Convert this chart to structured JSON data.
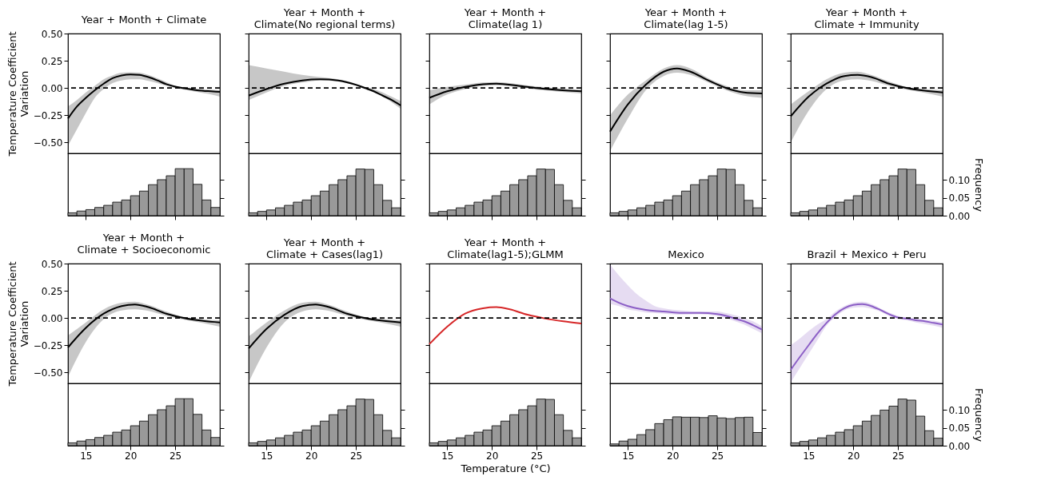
{
  "chart_data": [
    {
      "type": "line",
      "title": "Year + Month + Climate",
      "ylabel": "Temperature Coefficient\nVariation",
      "xlim": [
        13,
        30
      ],
      "ylim": [
        -0.6,
        0.5
      ],
      "yticks": [
        {
          "value": -0.5,
          "label": "−0.50"
        },
        {
          "value": -0.25,
          "label": "−0.25"
        },
        {
          "value": 0,
          "label": "0.00"
        },
        {
          "value": 0.25,
          "label": "0.25"
        },
        {
          "value": 0.5,
          "label": "0.50"
        }
      ],
      "tick_labels": "y",
      "series": [
        {
          "color": "#000000",
          "x": [
            13,
            14,
            15,
            16,
            17,
            18,
            19,
            20,
            21,
            22,
            23,
            24,
            25,
            26,
            27,
            28,
            29,
            30
          ],
          "values": [
            -0.28,
            -0.17,
            -0.09,
            -0.02,
            0.04,
            0.09,
            0.115,
            0.125,
            0.12,
            0.1,
            0.07,
            0.035,
            0.012,
            -0.003,
            -0.015,
            -0.025,
            -0.03,
            -0.035
          ],
          "lower": [
            -0.53,
            -0.38,
            -0.23,
            -0.09,
            -0.01,
            0.045,
            0.07,
            0.08,
            0.08,
            0.065,
            0.045,
            0.02,
            0,
            -0.015,
            -0.03,
            -0.045,
            -0.06,
            -0.08
          ],
          "upper": [
            -0.17,
            -0.11,
            -0.04,
            0.02,
            0.08,
            0.115,
            0.14,
            0.145,
            0.14,
            0.12,
            0.09,
            0.055,
            0.02,
            0.005,
            -0.005,
            -0.01,
            -0.015,
            -0.02
          ]
        }
      ],
      "ref_lines": [
        {
          "axis": "y",
          "value": 0,
          "color": "#000000",
          "line_style": "dashed"
        }
      ]
    },
    {
      "type": "histogram",
      "color": "#999999",
      "bins": [
        13,
        14,
        15,
        16,
        17,
        18,
        19,
        20,
        21,
        22,
        23,
        24,
        25,
        26,
        27,
        28,
        29,
        30
      ],
      "values": [
        0.008,
        0.013,
        0.017,
        0.023,
        0.029,
        0.038,
        0.044,
        0.056,
        0.069,
        0.087,
        0.101,
        0.112,
        0.132,
        0.132,
        0.088,
        0.044,
        0.023
      ],
      "xlim": [
        13,
        30
      ],
      "ylim": [
        0,
        0.175
      ],
      "xticks": [
        {
          "value": 15,
          "label": null
        },
        {
          "value": 20,
          "label": null
        },
        {
          "value": 25,
          "label": null
        }
      ],
      "yticks": [
        {
          "value": 0,
          "label": null
        },
        {
          "value": 0.05,
          "label": null
        },
        {
          "value": 0.1,
          "label": null
        }
      ],
      "tick_labels": false
    },
    {
      "type": "line",
      "title": "Year + Month +\nClimate(No regional terms)",
      "xlim": [
        13,
        30
      ],
      "ylim": [
        -0.6,
        0.5
      ],
      "yticks": [
        {
          "value": -0.5,
          "label": null
        },
        {
          "value": -0.25,
          "label": null
        },
        {
          "value": 0,
          "label": null
        },
        {
          "value": 0.25,
          "label": null
        },
        {
          "value": 0.5,
          "label": null
        }
      ],
      "tick_labels": false,
      "series": [
        {
          "color": "#000000",
          "x": [
            13,
            15,
            17,
            19,
            21,
            23,
            25,
            26,
            27,
            28,
            29,
            30
          ],
          "values": [
            -0.07,
            -0.01,
            0.04,
            0.07,
            0.08,
            0.07,
            0.03,
            0.0,
            -0.03,
            -0.07,
            -0.11,
            -0.16
          ],
          "lower": [
            -0.11,
            -0.04,
            0.02,
            0.05,
            0.07,
            0.06,
            0.02,
            -0.01,
            -0.04,
            -0.08,
            -0.13,
            -0.19
          ],
          "upper": [
            0.21,
            0.18,
            0.15,
            0.12,
            0.1,
            0.08,
            0.04,
            0.01,
            -0.01,
            -0.04,
            -0.08,
            -0.12
          ]
        }
      ],
      "ref_lines": [
        {
          "axis": "y",
          "value": 0,
          "color": "#000000",
          "line_style": "dashed"
        }
      ]
    },
    {
      "type": "histogram",
      "color": "#999999",
      "bins": [
        13,
        14,
        15,
        16,
        17,
        18,
        19,
        20,
        21,
        22,
        23,
        24,
        25,
        26,
        27,
        28,
        29,
        30
      ],
      "values": [
        0.008,
        0.012,
        0.016,
        0.022,
        0.029,
        0.038,
        0.044,
        0.056,
        0.069,
        0.087,
        0.101,
        0.112,
        0.131,
        0.13,
        0.087,
        0.043,
        0.022
      ],
      "xlim": [
        13,
        30
      ],
      "ylim": [
        0,
        0.175
      ],
      "xticks": [
        {
          "value": 15,
          "label": null
        },
        {
          "value": 20,
          "label": null
        },
        {
          "value": 25,
          "label": null
        }
      ],
      "yticks": [
        {
          "value": 0,
          "label": null
        },
        {
          "value": 0.05,
          "label": null
        },
        {
          "value": 0.1,
          "label": null
        }
      ],
      "tick_labels": false
    },
    {
      "type": "line",
      "title": "Year + Month +\nClimate(lag 1)",
      "xlim": [
        13,
        30
      ],
      "ylim": [
        -0.6,
        0.5
      ],
      "yticks": [
        {
          "value": -0.5,
          "label": null
        },
        {
          "value": -0.25,
          "label": null
        },
        {
          "value": 0,
          "label": null
        },
        {
          "value": 0.25,
          "label": null
        },
        {
          "value": 0.5,
          "label": null
        }
      ],
      "tick_labels": false,
      "series": [
        {
          "color": "#000000",
          "x": [
            13,
            15,
            17,
            19,
            20.5,
            23,
            25,
            27,
            30
          ],
          "values": [
            -0.09,
            -0.03,
            0.01,
            0.035,
            0.04,
            0.02,
            0.0,
            -0.015,
            -0.03
          ],
          "lower": [
            -0.15,
            -0.06,
            -0.01,
            0.02,
            0.025,
            0.005,
            -0.015,
            -0.03,
            -0.05
          ],
          "upper": [
            -0.02,
            0.01,
            0.03,
            0.05,
            0.055,
            0.035,
            0.015,
            0.0,
            -0.015
          ]
        }
      ],
      "ref_lines": [
        {
          "axis": "y",
          "value": 0,
          "color": "#000000",
          "line_style": "dashed"
        }
      ]
    },
    {
      "type": "histogram",
      "color": "#999999",
      "bins": [
        13,
        14,
        15,
        16,
        17,
        18,
        19,
        20,
        21,
        22,
        23,
        24,
        25,
        26,
        27,
        28,
        29,
        30
      ],
      "values": [
        0.008,
        0.012,
        0.016,
        0.022,
        0.029,
        0.038,
        0.044,
        0.056,
        0.069,
        0.087,
        0.101,
        0.112,
        0.131,
        0.13,
        0.087,
        0.043,
        0.022
      ],
      "xlim": [
        13,
        30
      ],
      "ylim": [
        0,
        0.175
      ],
      "xticks": [
        {
          "value": 15,
          "label": null
        },
        {
          "value": 20,
          "label": null
        },
        {
          "value": 25,
          "label": null
        }
      ],
      "yticks": [
        {
          "value": 0,
          "label": null
        },
        {
          "value": 0.05,
          "label": null
        },
        {
          "value": 0.1,
          "label": null
        }
      ],
      "tick_labels": false
    },
    {
      "type": "line",
      "title": "Year + Month +\nClimate(lag 1-5)",
      "xlim": [
        13,
        30
      ],
      "ylim": [
        -0.6,
        0.5
      ],
      "yticks": [
        {
          "value": -0.5,
          "label": null
        },
        {
          "value": -0.25,
          "label": null
        },
        {
          "value": 0,
          "label": null
        },
        {
          "value": 0.25,
          "label": null
        },
        {
          "value": 0.5,
          "label": null
        }
      ],
      "tick_labels": false,
      "series": [
        {
          "color": "#000000",
          "x": [
            13,
            15,
            17,
            19,
            20.5,
            22,
            24,
            26,
            28,
            30
          ],
          "values": [
            -0.4,
            -0.15,
            0.03,
            0.15,
            0.18,
            0.15,
            0.07,
            0.0,
            -0.04,
            -0.05
          ],
          "lower": [
            -0.58,
            -0.28,
            -0.02,
            0.11,
            0.14,
            0.12,
            0.05,
            -0.02,
            -0.07,
            -0.09
          ],
          "upper": [
            -0.25,
            -0.06,
            0.07,
            0.18,
            0.21,
            0.18,
            0.09,
            0.02,
            -0.02,
            -0.02
          ]
        }
      ],
      "ref_lines": [
        {
          "axis": "y",
          "value": 0,
          "color": "#000000",
          "line_style": "dashed"
        }
      ]
    },
    {
      "type": "histogram",
      "color": "#999999",
      "bins": [
        13,
        14,
        15,
        16,
        17,
        18,
        19,
        20,
        21,
        22,
        23,
        24,
        25,
        26,
        27,
        28,
        29,
        30
      ],
      "values": [
        0.008,
        0.012,
        0.016,
        0.022,
        0.029,
        0.038,
        0.044,
        0.056,
        0.069,
        0.087,
        0.101,
        0.112,
        0.131,
        0.13,
        0.087,
        0.043,
        0.022
      ],
      "xlim": [
        13,
        30
      ],
      "ylim": [
        0,
        0.175
      ],
      "xticks": [
        {
          "value": 15,
          "label": null
        },
        {
          "value": 20,
          "label": null
        },
        {
          "value": 25,
          "label": null
        }
      ],
      "yticks": [
        {
          "value": 0,
          "label": null
        },
        {
          "value": 0.05,
          "label": null
        },
        {
          "value": 0.1,
          "label": null
        }
      ],
      "tick_labels": false
    },
    {
      "type": "line",
      "title": "Year + Month +\nClimate + Immunity",
      "xlim": [
        13,
        30
      ],
      "ylim": [
        -0.6,
        0.5
      ],
      "yticks": [
        {
          "value": -0.5,
          "label": null
        },
        {
          "value": -0.25,
          "label": null
        },
        {
          "value": 0,
          "label": null
        },
        {
          "value": 0.25,
          "label": null
        },
        {
          "value": 0.5,
          "label": null
        }
      ],
      "tick_labels": false,
      "series": [
        {
          "color": "#000000",
          "x": [
            13,
            15,
            17,
            19,
            20.5,
            22,
            24,
            26,
            28,
            30
          ],
          "values": [
            -0.26,
            -0.08,
            0.04,
            0.11,
            0.12,
            0.1,
            0.04,
            0.0,
            -0.025,
            -0.04
          ],
          "lower": [
            -0.5,
            -0.21,
            -0.01,
            0.07,
            0.08,
            0.065,
            0.02,
            -0.015,
            -0.045,
            -0.08
          ],
          "upper": [
            -0.15,
            -0.03,
            0.08,
            0.14,
            0.15,
            0.12,
            0.06,
            0.01,
            -0.01,
            -0.02
          ]
        }
      ],
      "ref_lines": [
        {
          "axis": "y",
          "value": 0,
          "color": "#000000",
          "line_style": "dashed"
        }
      ]
    },
    {
      "type": "histogram",
      "color": "#999999",
      "ylabel": "Frequency",
      "bins": [
        13,
        14,
        15,
        16,
        17,
        18,
        19,
        20,
        21,
        22,
        23,
        24,
        25,
        26,
        27,
        28,
        29,
        30
      ],
      "values": [
        0.008,
        0.012,
        0.016,
        0.022,
        0.029,
        0.038,
        0.044,
        0.056,
        0.069,
        0.087,
        0.101,
        0.112,
        0.131,
        0.13,
        0.087,
        0.043,
        0.022
      ],
      "xlim": [
        13,
        30
      ],
      "ylim": [
        0,
        0.175
      ],
      "xticks": [
        {
          "value": 15,
          "label": null
        },
        {
          "value": 20,
          "label": null
        },
        {
          "value": 25,
          "label": null
        }
      ],
      "yticks": [
        {
          "value": 0,
          "label": "0.00"
        },
        {
          "value": 0.05,
          "label": "0.05"
        },
        {
          "value": 0.1,
          "label": "0.10"
        }
      ],
      "tick_labels": "y"
    },
    {
      "type": "line",
      "title": "Year + Month +\nClimate + Socioeconomic",
      "ylabel": "Temperature Coefficient\nVariation",
      "xlim": [
        13,
        30
      ],
      "ylim": [
        -0.6,
        0.5
      ],
      "yticks": [
        {
          "value": -0.5,
          "label": "−0.50"
        },
        {
          "value": -0.25,
          "label": "−0.25"
        },
        {
          "value": 0,
          "label": "0.00"
        },
        {
          "value": 0.25,
          "label": "0.25"
        },
        {
          "value": 0.5,
          "label": "0.50"
        }
      ],
      "tick_labels": "y",
      "series": [
        {
          "color": "#000000",
          "x": [
            13,
            15,
            17,
            19,
            20.5,
            22,
            24,
            26,
            28,
            30
          ],
          "values": [
            -0.27,
            -0.09,
            0.04,
            0.11,
            0.125,
            0.1,
            0.04,
            0.0,
            -0.025,
            -0.04
          ],
          "lower": [
            -0.54,
            -0.22,
            -0.01,
            0.07,
            0.08,
            0.065,
            0.02,
            -0.015,
            -0.045,
            -0.08
          ],
          "upper": [
            -0.16,
            -0.04,
            0.08,
            0.14,
            0.15,
            0.12,
            0.06,
            0.01,
            -0.01,
            -0.02
          ]
        }
      ],
      "ref_lines": [
        {
          "axis": "y",
          "value": 0,
          "color": "#000000",
          "line_style": "dashed"
        }
      ]
    },
    {
      "type": "histogram",
      "color": "#999999",
      "bins": [
        13,
        14,
        15,
        16,
        17,
        18,
        19,
        20,
        21,
        22,
        23,
        24,
        25,
        26,
        27,
        28,
        29,
        30
      ],
      "values": [
        0.008,
        0.013,
        0.017,
        0.023,
        0.029,
        0.038,
        0.044,
        0.056,
        0.069,
        0.087,
        0.101,
        0.112,
        0.132,
        0.132,
        0.088,
        0.044,
        0.023
      ],
      "xlim": [
        13,
        30
      ],
      "ylim": [
        0,
        0.175
      ],
      "xticks": [
        15,
        20,
        25
      ],
      "yticks": [
        {
          "value": 0,
          "label": null
        },
        {
          "value": 0.05,
          "label": null
        },
        {
          "value": 0.1,
          "label": null
        }
      ],
      "tick_labels": "x"
    },
    {
      "type": "line",
      "title": "Year + Month +\nClimate + Cases(lag1)",
      "xlim": [
        13,
        30
      ],
      "ylim": [
        -0.6,
        0.5
      ],
      "yticks": [
        {
          "value": -0.5,
          "label": null
        },
        {
          "value": -0.25,
          "label": null
        },
        {
          "value": 0,
          "label": null
        },
        {
          "value": 0.25,
          "label": null
        },
        {
          "value": 0.5,
          "label": null
        }
      ],
      "tick_labels": false,
      "series": [
        {
          "color": "#000000",
          "x": [
            13,
            15,
            17,
            19,
            20.5,
            22,
            24,
            26,
            28,
            30
          ],
          "values": [
            -0.28,
            -0.1,
            0.03,
            0.11,
            0.125,
            0.1,
            0.04,
            0.0,
            -0.025,
            -0.04
          ],
          "lower": [
            -0.59,
            -0.27,
            -0.04,
            0.06,
            0.08,
            0.065,
            0.02,
            -0.015,
            -0.045,
            -0.08
          ],
          "upper": [
            -0.17,
            -0.04,
            0.07,
            0.14,
            0.15,
            0.12,
            0.06,
            0.01,
            -0.01,
            -0.02
          ]
        }
      ],
      "ref_lines": [
        {
          "axis": "y",
          "value": 0,
          "color": "#000000",
          "line_style": "dashed"
        }
      ]
    },
    {
      "type": "histogram",
      "color": "#999999",
      "bins": [
        13,
        14,
        15,
        16,
        17,
        18,
        19,
        20,
        21,
        22,
        23,
        24,
        25,
        26,
        27,
        28,
        29,
        30
      ],
      "values": [
        0.008,
        0.012,
        0.016,
        0.022,
        0.029,
        0.038,
        0.044,
        0.056,
        0.069,
        0.087,
        0.101,
        0.112,
        0.131,
        0.13,
        0.087,
        0.043,
        0.022
      ],
      "xlim": [
        13,
        30
      ],
      "ylim": [
        0,
        0.175
      ],
      "xticks": [
        15,
        20,
        25
      ],
      "yticks": [
        {
          "value": 0,
          "label": null
        },
        {
          "value": 0.05,
          "label": null
        },
        {
          "value": 0.1,
          "label": null
        }
      ],
      "tick_labels": "x"
    },
    {
      "type": "line",
      "title": "Year + Month +\nClimate(lag1-5);GLMM",
      "xlim": [
        13,
        30
      ],
      "ylim": [
        -0.6,
        0.5
      ],
      "yticks": [
        {
          "value": -0.5,
          "label": null
        },
        {
          "value": -0.25,
          "label": null
        },
        {
          "value": 0,
          "label": null
        },
        {
          "value": 0.25,
          "label": null
        },
        {
          "value": 0.5,
          "label": null
        }
      ],
      "tick_labels": false,
      "series": [
        {
          "color": "#d62728",
          "x": [
            13,
            15,
            17,
            19,
            20.5,
            22,
            24,
            26,
            28,
            30
          ],
          "values": [
            -0.24,
            -0.08,
            0.04,
            0.09,
            0.1,
            0.08,
            0.03,
            -0.005,
            -0.03,
            -0.05
          ]
        }
      ],
      "ref_lines": [
        {
          "axis": "y",
          "value": 0,
          "color": "#000000",
          "line_style": "dashed"
        }
      ]
    },
    {
      "type": "histogram",
      "color": "#999999",
      "xlabel": "Temperature (°C)",
      "bins": [
        13,
        14,
        15,
        16,
        17,
        18,
        19,
        20,
        21,
        22,
        23,
        24,
        25,
        26,
        27,
        28,
        29,
        30
      ],
      "values": [
        0.008,
        0.012,
        0.016,
        0.022,
        0.029,
        0.038,
        0.044,
        0.056,
        0.069,
        0.087,
        0.101,
        0.112,
        0.131,
        0.13,
        0.087,
        0.043,
        0.022
      ],
      "xlim": [
        13,
        30
      ],
      "ylim": [
        0,
        0.175
      ],
      "xticks": [
        15,
        20,
        25
      ],
      "yticks": [
        {
          "value": 0,
          "label": null
        },
        {
          "value": 0.05,
          "label": null
        },
        {
          "value": 0.1,
          "label": null
        }
      ],
      "tick_labels": "x"
    },
    {
      "type": "line",
      "title": "Mexico",
      "xlim": [
        13,
        30
      ],
      "ylim": [
        -0.6,
        0.5
      ],
      "yticks": [
        {
          "value": -0.5,
          "label": null
        },
        {
          "value": -0.25,
          "label": null
        },
        {
          "value": 0,
          "label": null
        },
        {
          "value": 0.25,
          "label": null
        },
        {
          "value": 0.5,
          "label": null
        }
      ],
      "tick_labels": false,
      "series": [
        {
          "color": "#8c5fc6",
          "x": [
            13,
            14,
            15,
            16,
            17,
            18,
            19,
            21,
            23,
            25,
            26,
            27,
            28,
            29,
            30
          ],
          "values": [
            0.18,
            0.14,
            0.11,
            0.09,
            0.075,
            0.065,
            0.06,
            0.047,
            0.047,
            0.037,
            0.02,
            -0.006,
            -0.03,
            -0.065,
            -0.105
          ],
          "lower": [
            0.13,
            0.11,
            0.08,
            0.065,
            0.05,
            0.045,
            0.04,
            0.03,
            0.035,
            0.02,
            0.0,
            -0.03,
            -0.06,
            -0.1,
            -0.14
          ],
          "upper": [
            0.49,
            0.39,
            0.3,
            0.22,
            0.16,
            0.11,
            0.09,
            0.07,
            0.06,
            0.06,
            0.045,
            0.025,
            0.0,
            -0.03,
            -0.075
          ]
        }
      ],
      "ref_lines": [
        {
          "axis": "y",
          "value": 0,
          "color": "#000000",
          "line_style": "dashed"
        }
      ]
    },
    {
      "type": "histogram",
      "color": "#999999",
      "bins": [
        13,
        14,
        15,
        16,
        17,
        18,
        19,
        20,
        21,
        22,
        23,
        24,
        25,
        26,
        27,
        28,
        29,
        30
      ],
      "values": [
        0.005,
        0.013,
        0.018,
        0.031,
        0.045,
        0.062,
        0.073,
        0.081,
        0.08,
        0.08,
        0.079,
        0.084,
        0.078,
        0.076,
        0.079,
        0.08,
        0.037
      ],
      "xlim": [
        13,
        30
      ],
      "ylim": [
        0,
        0.175
      ],
      "xticks": [
        15,
        20,
        25
      ],
      "yticks": [
        {
          "value": 0,
          "label": null
        },
        {
          "value": 0.05,
          "label": null
        },
        {
          "value": 0.1,
          "label": null
        }
      ],
      "tick_labels": "x"
    },
    {
      "type": "line",
      "title": "Brazil + Mexico + Peru",
      "xlim": [
        13,
        30
      ],
      "ylim": [
        -0.6,
        0.5
      ],
      "yticks": [
        {
          "value": -0.5,
          "label": null
        },
        {
          "value": -0.25,
          "label": null
        },
        {
          "value": 0,
          "label": null
        },
        {
          "value": 0.25,
          "label": null
        },
        {
          "value": 0.5,
          "label": null
        }
      ],
      "tick_labels": false,
      "series": [
        {
          "color": "#8c5fc6",
          "x": [
            13,
            14,
            15,
            16,
            17,
            18,
            19,
            20,
            21,
            22,
            23,
            24,
            25,
            26,
            27,
            28,
            29,
            30
          ],
          "values": [
            -0.475,
            -0.36,
            -0.25,
            -0.14,
            -0.045,
            0.035,
            0.09,
            0.12,
            0.128,
            0.11,
            0.075,
            0.035,
            0.005,
            -0.005,
            -0.02,
            -0.03,
            -0.045,
            -0.06
          ],
          "lower": [
            -0.59,
            -0.46,
            -0.33,
            -0.2,
            -0.07,
            0.01,
            0.07,
            0.095,
            0.1,
            0.085,
            0.06,
            0.02,
            -0.01,
            -0.02,
            -0.04,
            -0.055,
            -0.07,
            -0.09
          ],
          "upper": [
            -0.25,
            -0.19,
            -0.12,
            -0.06,
            -0.01,
            0.06,
            0.11,
            0.14,
            0.15,
            0.13,
            0.09,
            0.05,
            0.02,
            0.005,
            -0.005,
            -0.015,
            -0.025,
            -0.04
          ]
        }
      ],
      "ref_lines": [
        {
          "axis": "y",
          "value": 0,
          "color": "#000000",
          "line_style": "dashed"
        }
      ]
    },
    {
      "type": "histogram",
      "color": "#999999",
      "ylabel": "Frequency",
      "bins": [
        13,
        14,
        15,
        16,
        17,
        18,
        19,
        20,
        21,
        22,
        23,
        24,
        25,
        26,
        27,
        28,
        29,
        30
      ],
      "values": [
        0.008,
        0.012,
        0.016,
        0.022,
        0.029,
        0.038,
        0.045,
        0.056,
        0.069,
        0.085,
        0.1,
        0.111,
        0.131,
        0.128,
        0.083,
        0.042,
        0.021
      ],
      "xlim": [
        13,
        30
      ],
      "ylim": [
        0,
        0.175
      ],
      "xticks": [
        15,
        20,
        25
      ],
      "yticks": [
        {
          "value": 0,
          "label": "0.00"
        },
        {
          "value": 0.05,
          "label": "0.05"
        },
        {
          "value": 0.1,
          "label": "0.10"
        }
      ]
    }
  ]
}
